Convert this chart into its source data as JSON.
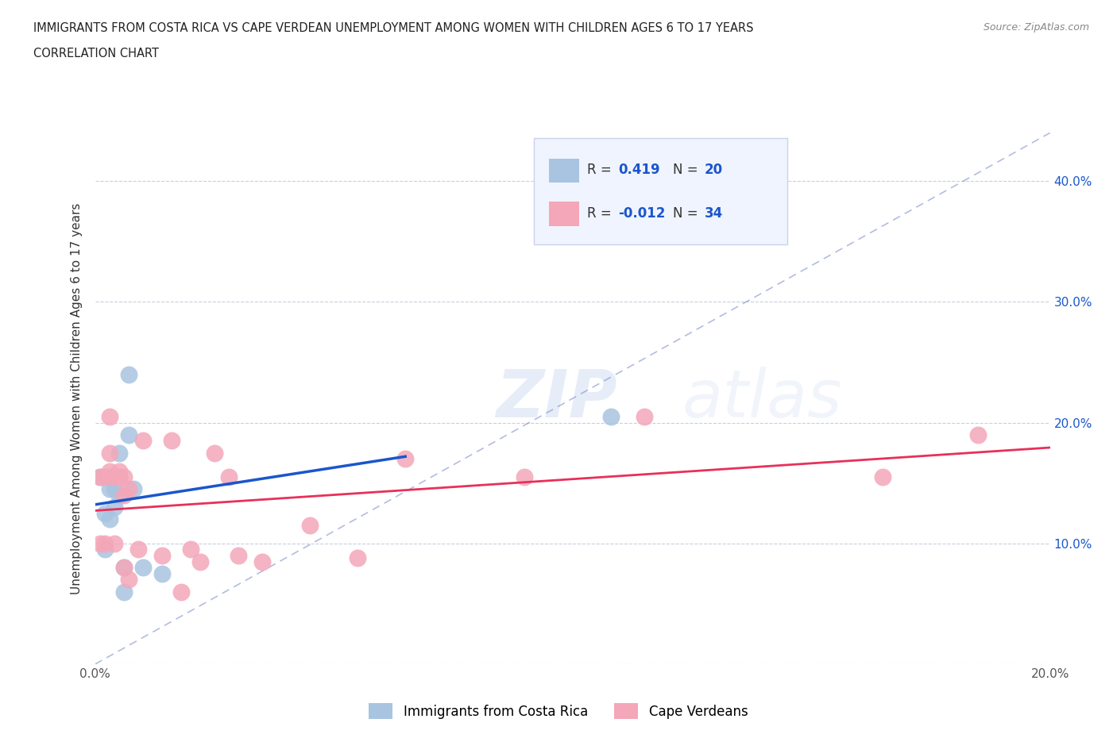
{
  "title_line1": "IMMIGRANTS FROM COSTA RICA VS CAPE VERDEAN UNEMPLOYMENT AMONG WOMEN WITH CHILDREN AGES 6 TO 17 YEARS",
  "title_line2": "CORRELATION CHART",
  "source_text": "Source: ZipAtlas.com",
  "ylabel": "Unemployment Among Women with Children Ages 6 to 17 years",
  "xlim": [
    0.0,
    0.2
  ],
  "ylim": [
    0.0,
    0.44
  ],
  "xticks": [
    0.0,
    0.02,
    0.04,
    0.06,
    0.08,
    0.1,
    0.12,
    0.14,
    0.16,
    0.18,
    0.2
  ],
  "yticks": [
    0.0,
    0.1,
    0.2,
    0.3,
    0.4
  ],
  "ytick_labels": [
    "",
    "10.0%",
    "20.0%",
    "30.0%",
    "40.0%"
  ],
  "xtick_labels": [
    "0.0%",
    "",
    "",
    "",
    "",
    "",
    "",
    "",
    "",
    "",
    "20.0%"
  ],
  "costa_rica_R": 0.419,
  "costa_rica_N": 20,
  "cape_verde_R": -0.012,
  "cape_verde_N": 34,
  "costa_rica_color": "#a8c4e0",
  "cape_verde_color": "#f4a7b9",
  "costa_rica_line_color": "#1a56cc",
  "cape_verde_line_color": "#e8305a",
  "identity_line_color": "#8090cc",
  "background_color": "#ffffff",
  "grid_color": "#c8d0dc",
  "watermark_text": "ZIPatlas",
  "legend_text_color": "#1a56cc",
  "legend_label_color": "#333333",
  "costa_rica_x": [
    0.001,
    0.002,
    0.002,
    0.003,
    0.003,
    0.003,
    0.004,
    0.004,
    0.004,
    0.005,
    0.005,
    0.005,
    0.006,
    0.006,
    0.007,
    0.007,
    0.008,
    0.01,
    0.014,
    0.108
  ],
  "costa_rica_y": [
    0.155,
    0.095,
    0.125,
    0.155,
    0.145,
    0.12,
    0.155,
    0.145,
    0.13,
    0.175,
    0.155,
    0.14,
    0.08,
    0.06,
    0.24,
    0.19,
    0.145,
    0.08,
    0.075,
    0.205
  ],
  "cape_verde_x": [
    0.001,
    0.001,
    0.002,
    0.002,
    0.003,
    0.003,
    0.003,
    0.004,
    0.004,
    0.005,
    0.005,
    0.006,
    0.006,
    0.006,
    0.007,
    0.007,
    0.009,
    0.01,
    0.014,
    0.016,
    0.018,
    0.02,
    0.022,
    0.025,
    0.028,
    0.03,
    0.035,
    0.045,
    0.055,
    0.065,
    0.09,
    0.115,
    0.165,
    0.185
  ],
  "cape_verde_y": [
    0.155,
    0.1,
    0.1,
    0.155,
    0.205,
    0.175,
    0.16,
    0.155,
    0.1,
    0.16,
    0.155,
    0.155,
    0.14,
    0.08,
    0.145,
    0.07,
    0.095,
    0.185,
    0.09,
    0.185,
    0.06,
    0.095,
    0.085,
    0.175,
    0.155,
    0.09,
    0.085,
    0.115,
    0.088,
    0.17,
    0.155,
    0.205,
    0.155,
    0.19
  ],
  "legend_box_color": "#f0f4ff",
  "legend_box_edge": "#c8d4e8"
}
